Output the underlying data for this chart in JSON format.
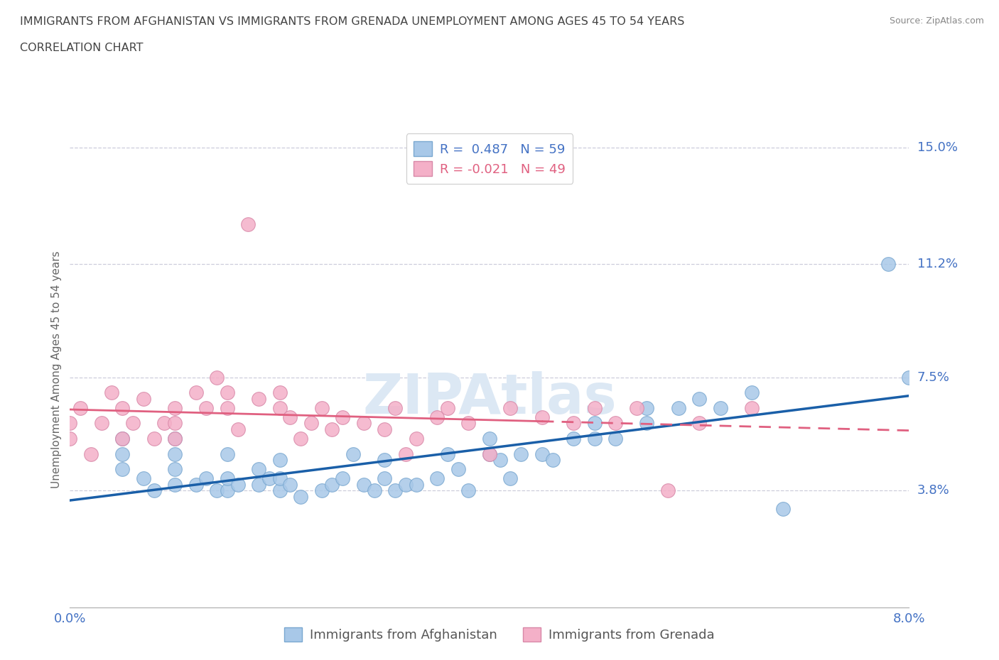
{
  "title_line1": "IMMIGRANTS FROM AFGHANISTAN VS IMMIGRANTS FROM GRENADA UNEMPLOYMENT AMONG AGES 45 TO 54 YEARS",
  "title_line2": "CORRELATION CHART",
  "source_text": "Source: ZipAtlas.com",
  "ylabel": "Unemployment Among Ages 45 to 54 years",
  "xlim": [
    0.0,
    0.08
  ],
  "ylim": [
    0.0,
    0.155
  ],
  "ytick_positions": [
    0.038,
    0.075,
    0.112,
    0.15
  ],
  "ytick_labels": [
    "3.8%",
    "7.5%",
    "11.2%",
    "15.0%"
  ],
  "r_afghanistan": 0.487,
  "n_afghanistan": 59,
  "r_grenada": -0.021,
  "n_grenada": 49,
  "color_afghanistan": "#a8c8e8",
  "color_grenada": "#f4b0c8",
  "line_color_afghanistan": "#1a5fa8",
  "line_color_grenada": "#e06080",
  "background_color": "#ffffff",
  "grid_color": "#c8c8d8",
  "title_color": "#444444",
  "axis_label_color": "#666666",
  "tick_label_color": "#4472c4",
  "watermark_color": "#dce8f4",
  "legend_label_color_af": "#4472c4",
  "legend_label_color_gr": "#e06080",
  "af_x": [
    0.005,
    0.005,
    0.005,
    0.007,
    0.008,
    0.01,
    0.01,
    0.01,
    0.01,
    0.012,
    0.013,
    0.014,
    0.015,
    0.015,
    0.015,
    0.016,
    0.018,
    0.018,
    0.019,
    0.02,
    0.02,
    0.02,
    0.021,
    0.022,
    0.024,
    0.025,
    0.026,
    0.027,
    0.028,
    0.029,
    0.03,
    0.03,
    0.031,
    0.032,
    0.033,
    0.035,
    0.036,
    0.037,
    0.038,
    0.04,
    0.04,
    0.041,
    0.042,
    0.043,
    0.045,
    0.046,
    0.048,
    0.05,
    0.05,
    0.052,
    0.055,
    0.055,
    0.058,
    0.06,
    0.062,
    0.065,
    0.068,
    0.078,
    0.08
  ],
  "af_y": [
    0.045,
    0.05,
    0.055,
    0.042,
    0.038,
    0.04,
    0.045,
    0.05,
    0.055,
    0.04,
    0.042,
    0.038,
    0.038,
    0.042,
    0.05,
    0.04,
    0.04,
    0.045,
    0.042,
    0.038,
    0.042,
    0.048,
    0.04,
    0.036,
    0.038,
    0.04,
    0.042,
    0.05,
    0.04,
    0.038,
    0.042,
    0.048,
    0.038,
    0.04,
    0.04,
    0.042,
    0.05,
    0.045,
    0.038,
    0.05,
    0.055,
    0.048,
    0.042,
    0.05,
    0.05,
    0.048,
    0.055,
    0.055,
    0.06,
    0.055,
    0.06,
    0.065,
    0.065,
    0.068,
    0.065,
    0.07,
    0.032,
    0.112,
    0.075
  ],
  "gr_x": [
    0.0,
    0.0,
    0.001,
    0.002,
    0.003,
    0.004,
    0.005,
    0.005,
    0.006,
    0.007,
    0.008,
    0.009,
    0.01,
    0.01,
    0.01,
    0.012,
    0.013,
    0.014,
    0.015,
    0.015,
    0.016,
    0.017,
    0.018,
    0.02,
    0.02,
    0.021,
    0.022,
    0.023,
    0.024,
    0.025,
    0.026,
    0.028,
    0.03,
    0.031,
    0.032,
    0.033,
    0.035,
    0.036,
    0.038,
    0.04,
    0.042,
    0.045,
    0.048,
    0.05,
    0.052,
    0.054,
    0.057,
    0.06,
    0.065
  ],
  "gr_y": [
    0.055,
    0.06,
    0.065,
    0.05,
    0.06,
    0.07,
    0.055,
    0.065,
    0.06,
    0.068,
    0.055,
    0.06,
    0.055,
    0.06,
    0.065,
    0.07,
    0.065,
    0.075,
    0.065,
    0.07,
    0.058,
    0.125,
    0.068,
    0.065,
    0.07,
    0.062,
    0.055,
    0.06,
    0.065,
    0.058,
    0.062,
    0.06,
    0.058,
    0.065,
    0.05,
    0.055,
    0.062,
    0.065,
    0.06,
    0.05,
    0.065,
    0.062,
    0.06,
    0.065,
    0.06,
    0.065,
    0.038,
    0.06,
    0.065
  ]
}
